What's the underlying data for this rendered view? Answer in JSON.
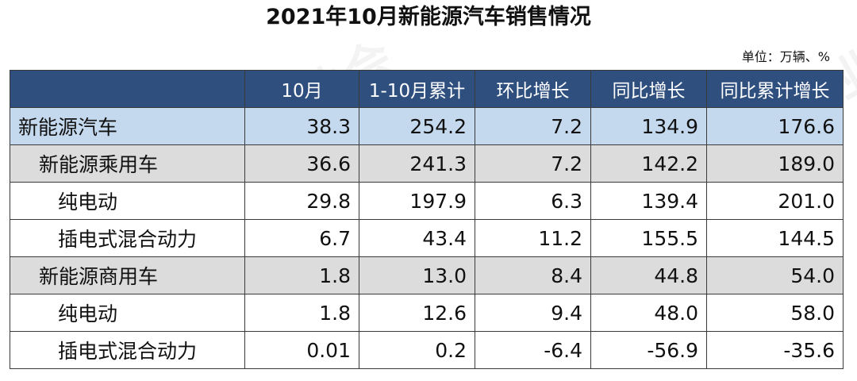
{
  "title": "2021年10月新能源汽车销售情况",
  "unit": "单位：万辆、%",
  "table": {
    "headers": [
      "",
      "10月",
      "1-10月累计",
      "环比增长",
      "同比增长",
      "同比累计增长"
    ],
    "rows": [
      {
        "level": 0,
        "label": "新能源汽车",
        "values": [
          "38.3",
          "254.2",
          "7.2",
          "134.9",
          "176.6"
        ]
      },
      {
        "level": 1,
        "label": "新能源乘用车",
        "values": [
          "36.6",
          "241.3",
          "7.2",
          "142.2",
          "189.0"
        ]
      },
      {
        "level": 2,
        "label": "纯电动",
        "values": [
          "29.8",
          "197.9",
          "6.3",
          "139.4",
          "201.0"
        ]
      },
      {
        "level": 2,
        "label": "插电式混合动力",
        "values": [
          "6.7",
          "43.4",
          "11.2",
          "155.5",
          "144.5"
        ]
      },
      {
        "level": 1,
        "label": "新能源商用车",
        "values": [
          "1.8",
          "13.0",
          "8.4",
          "44.8",
          "54.0"
        ]
      },
      {
        "level": 2,
        "label": "纯电动",
        "values": [
          "1.8",
          "12.6",
          "9.4",
          "48.0",
          "58.0"
        ]
      },
      {
        "level": 2,
        "label": "插电式混合动力",
        "values": [
          "0.01",
          "0.2",
          "-6.4",
          "-56.9",
          "-35.6"
        ]
      }
    ]
  },
  "watermark": "中国汽车工业协会"
}
